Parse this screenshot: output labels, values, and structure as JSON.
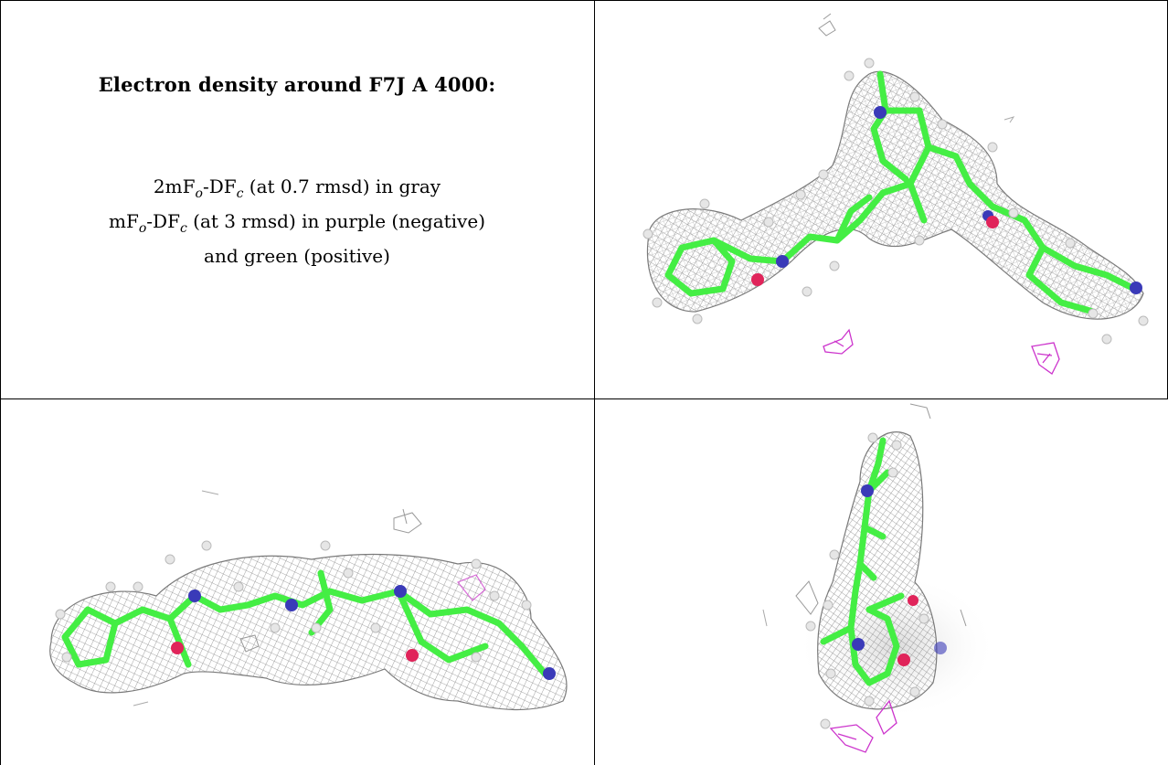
{
  "caption": {
    "title": "Electron density around F7J A 4000:",
    "line1": {
      "pre": "2mF",
      "sub1": "o",
      "mid": "-DF",
      "sub2": "c",
      "post": " (at 0.7 rmsd) in gray"
    },
    "line2": {
      "pre": "mF",
      "sub1": "o",
      "mid": "-DF",
      "sub2": "c",
      "post": " (at 3 rmsd) in purple (negative)"
    },
    "line3": "and green (positive)"
  },
  "colors": {
    "mesh_2fofc": "#8a8a8a",
    "negative_density": "#cc33cc",
    "carbon": "#44ee44",
    "nitrogen": "#3a3ab8",
    "oxygen": "#e0245a",
    "hydrogen": "#e0e0e0"
  },
  "views": [
    {
      "name": "view-top-right",
      "molecule": "F7J"
    },
    {
      "name": "view-bottom-left",
      "molecule": "F7J"
    },
    {
      "name": "view-bottom-right",
      "molecule": "F7J"
    }
  ]
}
